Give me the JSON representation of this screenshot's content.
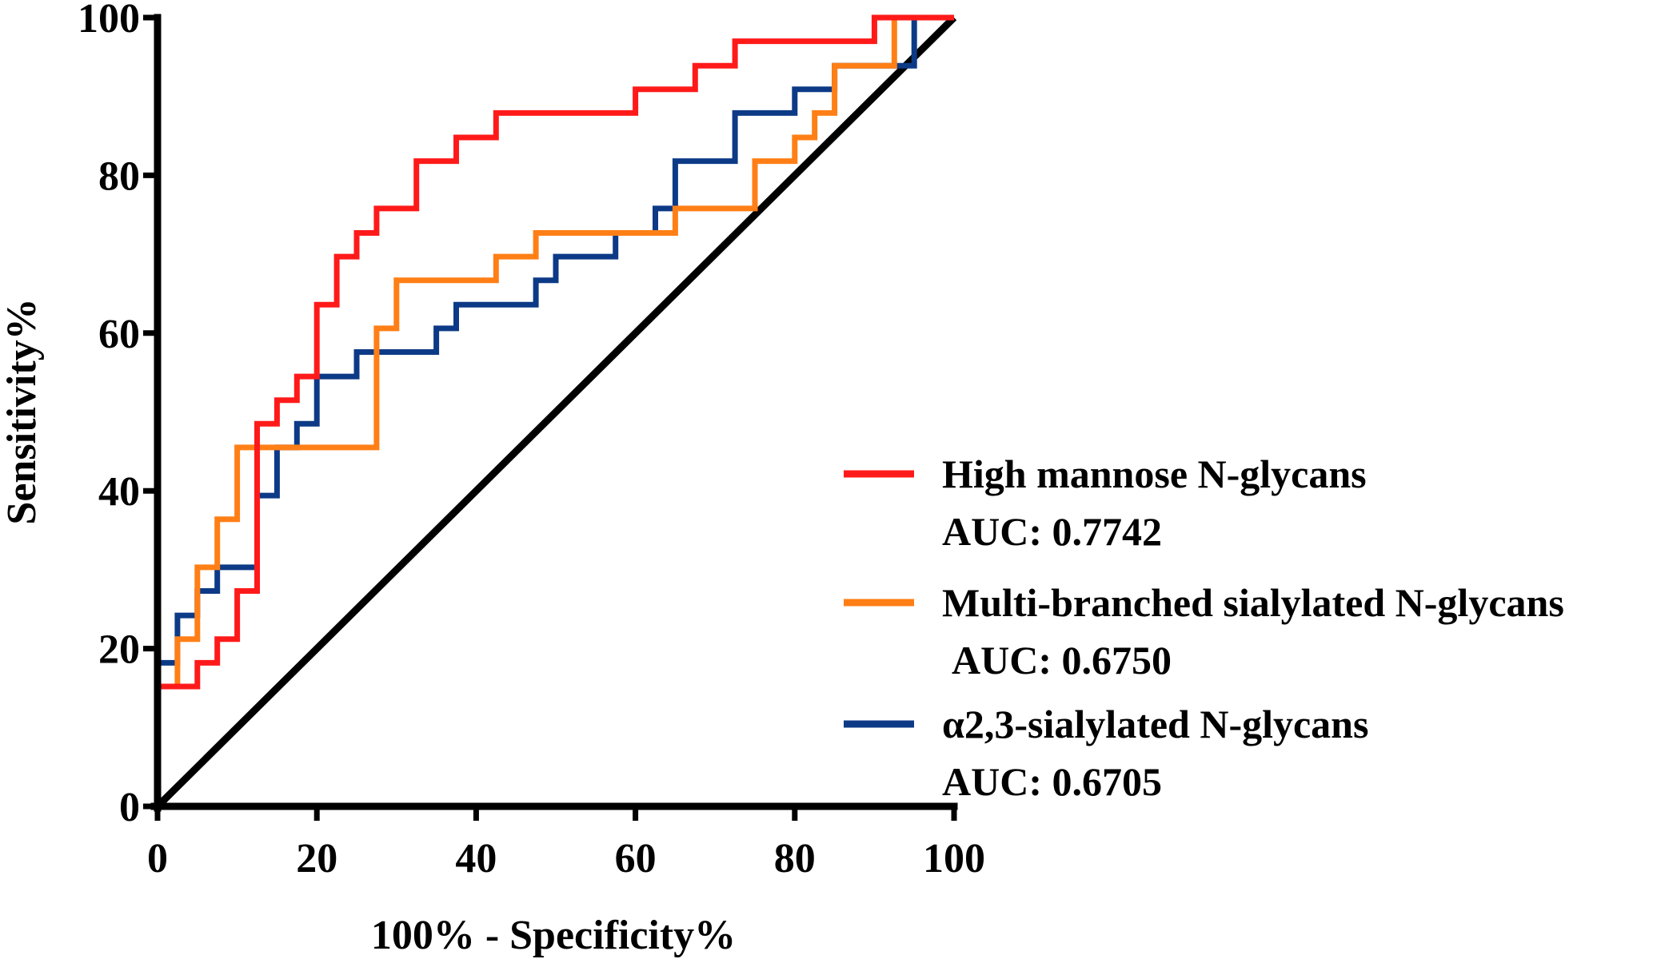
{
  "chart_data": {
    "type": "line",
    "title": "",
    "xlabel": "100% - Specificity%",
    "ylabel": "Sensitivity%",
    "xlim": [
      0,
      100
    ],
    "ylim": [
      0,
      100
    ],
    "xticks": [
      "0",
      "20",
      "40",
      "60",
      "80",
      "100"
    ],
    "yticks": [
      "0",
      "20",
      "40",
      "60",
      "80",
      "100"
    ],
    "xtick_values": [
      0,
      20,
      40,
      60,
      80,
      100
    ],
    "ytick_values": [
      0,
      20,
      40,
      60,
      80,
      100
    ],
    "legend_position": "right",
    "reference_line": {
      "x": [
        0,
        100
      ],
      "y": [
        0,
        100
      ],
      "color": "#000000"
    },
    "series": [
      {
        "name": "High mannose N-glycans",
        "auc_label": "AUC: 0.7742",
        "color": "#ff1a1a",
        "x": [
          0,
          0,
          5,
          5,
          7.5,
          7.5,
          10,
          10,
          12.5,
          12.5,
          15,
          15,
          17.5,
          17.5,
          20,
          20,
          22.5,
          22.5,
          25,
          25,
          27.5,
          27.5,
          32.5,
          32.5,
          37.5,
          37.5,
          42.5,
          42.5,
          60,
          60,
          67.5,
          67.5,
          72.5,
          72.5,
          90,
          90,
          100
        ],
        "y": [
          0,
          15.2,
          15.2,
          18.2,
          18.2,
          21.2,
          21.2,
          27.3,
          27.3,
          48.5,
          48.5,
          51.5,
          51.5,
          54.5,
          54.5,
          63.6,
          63.6,
          69.7,
          69.7,
          72.7,
          72.7,
          75.8,
          75.8,
          81.8,
          81.8,
          84.8,
          84.8,
          87.9,
          87.9,
          90.9,
          90.9,
          93.9,
          93.9,
          97,
          97,
          100,
          100
        ]
      },
      {
        "name": "Multi-branched sialylated N-glycans",
        "auc_label": "AUC: 0.6750",
        "color": "#ff7f16",
        "x": [
          2.5,
          2.5,
          5,
          5,
          7.5,
          7.5,
          10,
          10,
          27.5,
          27.5,
          30,
          30,
          42.5,
          42.5,
          47.5,
          47.5,
          65,
          65,
          75,
          75,
          80,
          80,
          82.5,
          82.5,
          85,
          85,
          92.5,
          92.5,
          100
        ],
        "y": [
          15.2,
          21.2,
          21.2,
          30.3,
          30.3,
          36.4,
          36.4,
          45.5,
          45.5,
          60.6,
          60.6,
          66.7,
          66.7,
          69.7,
          69.7,
          72.7,
          72.7,
          75.8,
          75.8,
          81.8,
          81.8,
          84.8,
          84.8,
          87.9,
          87.9,
          93.9,
          93.9,
          100,
          100
        ]
      },
      {
        "name": "α2,3-sialylated N-glycans",
        "auc_label": "AUC: 0.6705",
        "color": "#0d3a86",
        "x": [
          0,
          0,
          2.5,
          2.5,
          5,
          5,
          7.5,
          7.5,
          12.5,
          12.5,
          15,
          15,
          17.5,
          17.5,
          20,
          20,
          25,
          25,
          35,
          35,
          37.5,
          37.5,
          47.5,
          47.5,
          50,
          50,
          57.5,
          57.5,
          62.5,
          62.5,
          65,
          65,
          72.5,
          72.5,
          80,
          80,
          85,
          85,
          92.5,
          95,
          95,
          100
        ],
        "y": [
          15,
          18.2,
          18.2,
          24.2,
          24.2,
          27.3,
          27.3,
          30.3,
          30.3,
          39.4,
          39.4,
          45.5,
          45.5,
          48.5,
          48.5,
          54.5,
          54.5,
          57.6,
          57.6,
          60.6,
          60.6,
          63.6,
          63.6,
          66.7,
          66.7,
          69.7,
          69.7,
          72.7,
          72.7,
          75.8,
          75.8,
          81.8,
          81.8,
          87.9,
          87.9,
          90.9,
          90.9,
          93.9,
          93.9,
          93.9,
          100,
          100
        ]
      }
    ]
  }
}
